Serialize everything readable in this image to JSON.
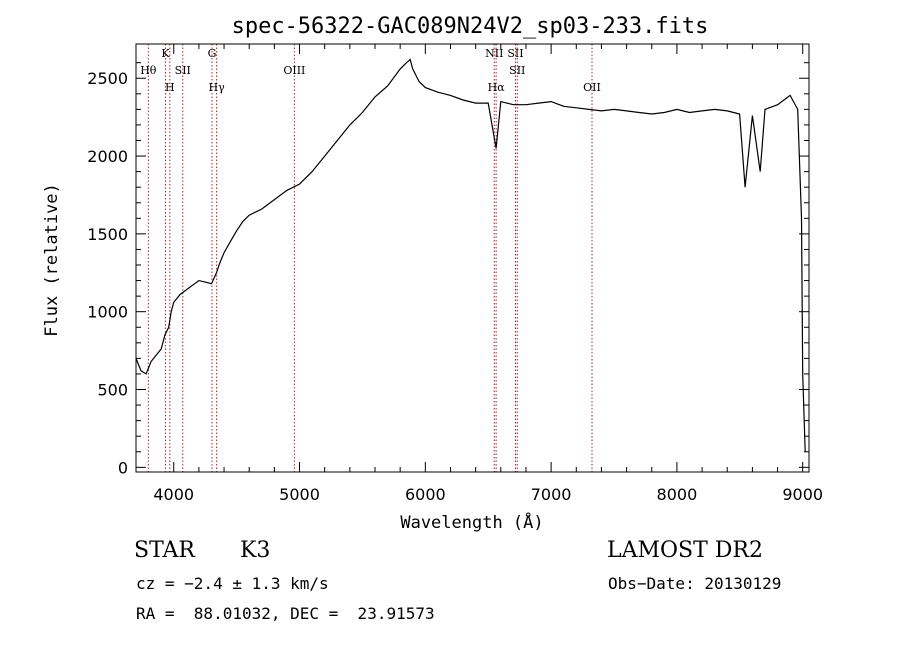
{
  "chart_data": {
    "type": "line",
    "title": "spec-56322-GAC089N24V2_sp03-233.fits",
    "xlabel": "Wavelength (Å)",
    "ylabel": "Flux (relative)",
    "xlim": [
      3700,
      9050
    ],
    "ylim": [
      -30,
      2720
    ],
    "xticks": [
      4000,
      5000,
      6000,
      7000,
      8000,
      9000
    ],
    "yticks": [
      0,
      500,
      1000,
      1500,
      2000,
      2500
    ],
    "grid": false,
    "series": [
      {
        "x": [
          3700,
          3740,
          3780,
          3820,
          3860,
          3900,
          3930,
          3960,
          3980,
          4000,
          4050,
          4100,
          4150,
          4200,
          4250,
          4300,
          4340,
          4360,
          4400,
          4450,
          4500,
          4550,
          4600,
          4700,
          4800,
          4900,
          5000,
          5100,
          5200,
          5300,
          5400,
          5500,
          5600,
          5700,
          5800,
          5850,
          5880,
          5900,
          5950,
          6000,
          6100,
          6200,
          6300,
          6400,
          6500,
          6563,
          6600,
          6700,
          6800,
          6900,
          7000,
          7100,
          7200,
          7300,
          7400,
          7500,
          7600,
          7700,
          7800,
          7900,
          8000,
          8100,
          8200,
          8300,
          8400,
          8498,
          8542,
          8600,
          8662,
          8700,
          8800,
          8900,
          8960,
          8990,
          9000,
          9020
        ],
        "y": [
          700,
          620,
          600,
          680,
          720,
          760,
          850,
          900,
          1000,
          1060,
          1110,
          1140,
          1170,
          1200,
          1190,
          1180,
          1250,
          1300,
          1380,
          1450,
          1520,
          1580,
          1620,
          1660,
          1720,
          1780,
          1820,
          1900,
          2000,
          2100,
          2200,
          2280,
          2380,
          2450,
          2560,
          2600,
          2620,
          2560,
          2480,
          2440,
          2410,
          2390,
          2360,
          2340,
          2340,
          2050,
          2350,
          2330,
          2330,
          2340,
          2350,
          2320,
          2310,
          2300,
          2290,
          2300,
          2290,
          2280,
          2270,
          2280,
          2300,
          2280,
          2290,
          2300,
          2290,
          2270,
          1800,
          2260,
          1900,
          2300,
          2330,
          2390,
          2300,
          1600,
          600,
          100
        ]
      }
    ],
    "lines": [
      {
        "name": "Hθ",
        "x": 3798
      },
      {
        "name": "K",
        "x": 3934
      },
      {
        "name": "H",
        "x": 3969
      },
      {
        "name": "SII",
        "x": 4072
      },
      {
        "name": "G",
        "x": 4304
      },
      {
        "name": "Hγ",
        "x": 4341
      },
      {
        "name": "OIII",
        "x": 4959
      },
      {
        "name": "NII",
        "x": 6548
      },
      {
        "name": "Hα",
        "x": 6563
      },
      {
        "name": "SII",
        "x": 6717
      },
      {
        "name": "SII",
        "x": 6731
      },
      {
        "name": "OII",
        "x": 7325
      }
    ]
  },
  "info": {
    "object_class": "STAR",
    "subclass": "K3",
    "survey": "LAMOST DR2",
    "redshift": "cz = −2.4 ± 1.3 km/s",
    "obs_date": "Obs−Date: 20130129",
    "coords": "RA =  88.01032, DEC =  23.91573"
  }
}
